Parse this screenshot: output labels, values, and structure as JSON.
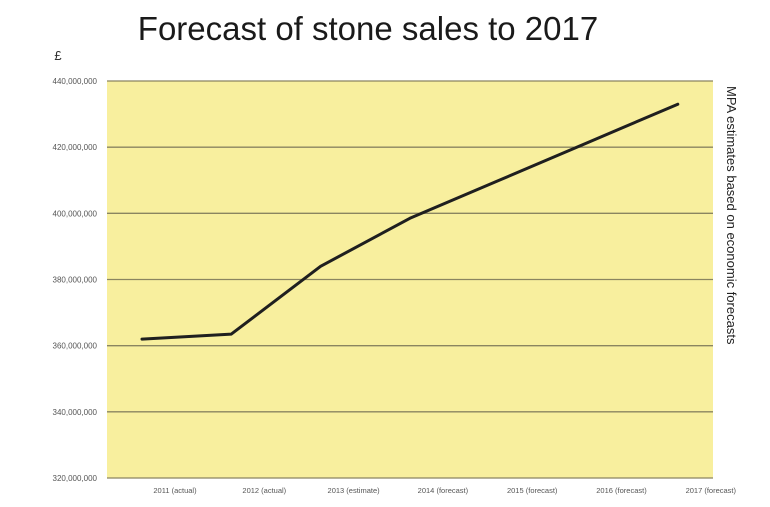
{
  "chart_data": {
    "type": "line",
    "title": "Forecast of stone sales to 2017",
    "ylabel": "£",
    "side_note": "MPA estimates based on economic forecasts",
    "categories": [
      "2011 (actual)",
      "2012 (actual)",
      "2013 (estimate)",
      "2014 (forecast)",
      "2015 (forecast)",
      "2016 (forecast)",
      "2017 (forecast)"
    ],
    "series": [
      {
        "values": [
          362000000,
          363500000,
          384000000,
          398500000,
          410000000,
          421500000,
          433000000
        ]
      }
    ],
    "ylim": [
      320000000,
      440000000
    ],
    "yticks": [
      320000000,
      340000000,
      360000000,
      380000000,
      400000000,
      420000000,
      440000000
    ],
    "ytick_labels": [
      "320,000,000",
      "340,000,000",
      "360,000,000",
      "380,000,000",
      "400,000,000",
      "420,000,000",
      "440,000,000"
    ],
    "grid": true,
    "colors": {
      "plot_background": "#f8ef9e",
      "gridline": "#8a8560",
      "line": "#1f1f1f"
    }
  }
}
